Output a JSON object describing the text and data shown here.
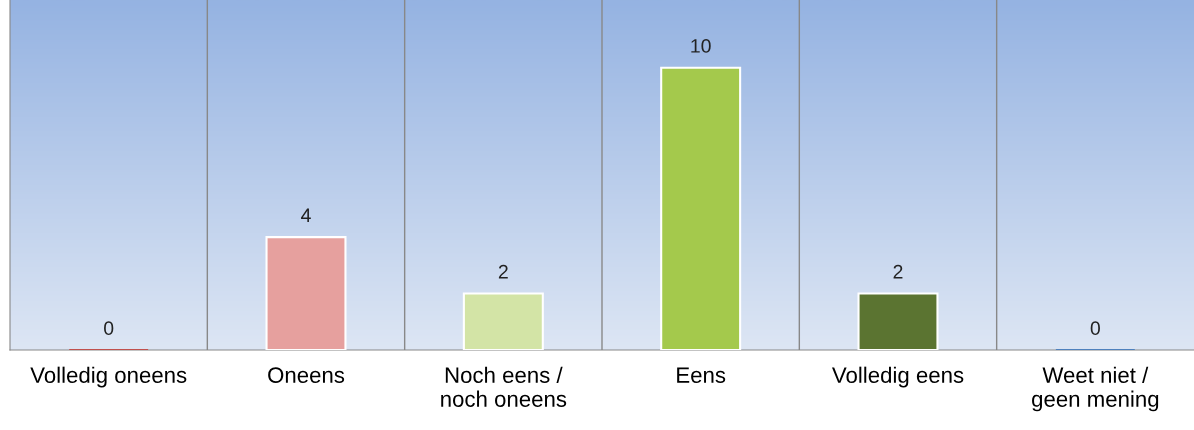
{
  "chart_data": {
    "type": "bar",
    "categories": [
      "Volledig oneens",
      "Oneens",
      "Noch eens / noch oneens",
      "Eens",
      "Volledig eens",
      "Weet niet / geen mening"
    ],
    "values": [
      0,
      4,
      2,
      10,
      2,
      0
    ],
    "colors": [
      "#c0504d",
      "#e6a09e",
      "#d3e4a6",
      "#a4c94c",
      "#5b7431",
      "#4f81bd"
    ],
    "data_labels": true,
    "grid": "x"
  }
}
